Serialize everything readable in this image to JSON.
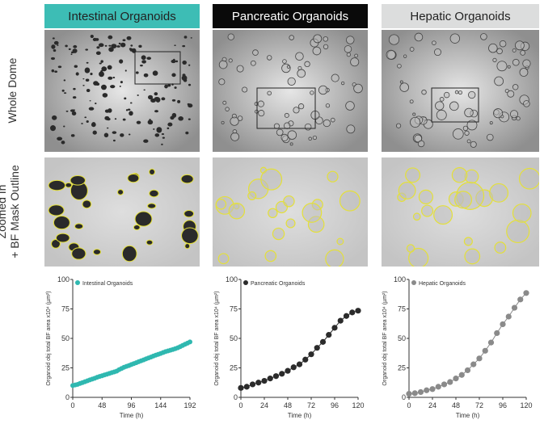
{
  "columns": [
    {
      "title": "Intestinal Organoids",
      "header_bg": "#3dbdb5",
      "header_fg": "#222222"
    },
    {
      "title": "Pancreatic Organoids",
      "header_bg": "#0a0a0a",
      "header_fg": "#ffffff"
    },
    {
      "title": "Hepatic Organoids",
      "header_bg": "#dcdddd",
      "header_fg": "#222222"
    }
  ],
  "row_labels": {
    "whole": "Whole Dome",
    "zoom_line1": "Zoomed In",
    "zoom_line2": "+ BF Mask Outline"
  },
  "mask_color": "#e4e03a",
  "chart_data": [
    {
      "type": "scatter",
      "title": "",
      "xlabel": "Time (h)",
      "ylabel": "Organoid obj total BF area x10⁴ (µm²)",
      "xlim": [
        0,
        192
      ],
      "ylim": [
        0,
        100
      ],
      "xticks": [
        0,
        48,
        96,
        144,
        192
      ],
      "yticks": [
        0,
        25,
        50,
        75,
        100
      ],
      "legend": "top-left",
      "series": [
        {
          "name": "Intestinal Organoids",
          "color": "#2fb8b0",
          "x": [
            0,
            4,
            8,
            12,
            16,
            20,
            24,
            28,
            32,
            36,
            40,
            44,
            48,
            52,
            56,
            60,
            64,
            68,
            72,
            76,
            80,
            84,
            88,
            92,
            96,
            100,
            104,
            108,
            112,
            116,
            120,
            124,
            128,
            132,
            136,
            140,
            144,
            148,
            152,
            156,
            160,
            164,
            168,
            172,
            176,
            180,
            184,
            188,
            192
          ],
          "y": [
            10,
            10.5,
            11,
            11.8,
            12.5,
            13.3,
            14,
            14.8,
            15.5,
            16.2,
            17,
            17.7,
            18.3,
            19,
            19.6,
            20.3,
            21,
            21.6,
            22.3,
            23.5,
            24.5,
            25.5,
            26.3,
            27,
            27.8,
            28.6,
            29.4,
            30.2,
            31,
            31.8,
            32.6,
            33.4,
            34.2,
            35,
            35.8,
            36.5,
            37.2,
            38,
            38.8,
            39.4,
            40,
            40.6,
            41.3,
            42,
            43,
            44,
            45,
            46,
            47
          ]
        }
      ]
    },
    {
      "type": "line",
      "title": "",
      "xlabel": "Time (h)",
      "ylabel": "Organoid obj total BF area x10⁴ (µm²)",
      "xlim": [
        0,
        120
      ],
      "ylim": [
        0,
        100
      ],
      "xticks": [
        0,
        24,
        48,
        72,
        96,
        120
      ],
      "yticks": [
        0,
        25,
        50,
        75,
        100
      ],
      "legend": "top-left",
      "series": [
        {
          "name": "Pancreatic Organoids",
          "color": "#2b2b2b",
          "x": [
            0,
            6,
            12,
            18,
            24,
            30,
            36,
            42,
            48,
            54,
            60,
            66,
            72,
            78,
            84,
            90,
            96,
            102,
            108,
            114,
            120
          ],
          "y": [
            8,
            9,
            11,
            12.5,
            14,
            16,
            18,
            20,
            22.5,
            25.5,
            28,
            32,
            36.5,
            42,
            47,
            53,
            59,
            65,
            69,
            72,
            73.5
          ]
        }
      ]
    },
    {
      "type": "line",
      "title": "",
      "xlabel": "Time (h)",
      "ylabel": "Organoid obj total BF area x10⁴ (µm²)",
      "xlim": [
        0,
        120
      ],
      "ylim": [
        0,
        100
      ],
      "xticks": [
        0,
        24,
        48,
        72,
        96,
        120
      ],
      "yticks": [
        0,
        25,
        50,
        75,
        100
      ],
      "legend": "top-left",
      "series": [
        {
          "name": "Hepatic Organoids",
          "color": "#8a8a8a",
          "x": [
            0,
            6,
            12,
            18,
            24,
            30,
            36,
            42,
            48,
            54,
            60,
            66,
            72,
            78,
            84,
            90,
            96,
            102,
            108,
            114,
            120
          ],
          "y": [
            3,
            3.5,
            4.5,
            6,
            7,
            9,
            11,
            13,
            16,
            19,
            23,
            28,
            33,
            39.5,
            46.5,
            54.5,
            62,
            68.5,
            76,
            83,
            88.5
          ]
        }
      ]
    }
  ]
}
